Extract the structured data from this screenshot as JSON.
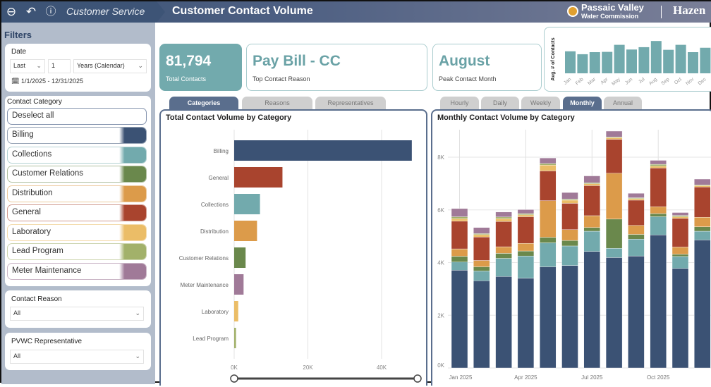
{
  "header": {
    "breadcrumb": "Customer Service",
    "title": "Customer Contact Volume",
    "logo_primary": "Passaic Valley",
    "logo_secondary": "Water Commission",
    "partner_logo": "Hazen",
    "icons": [
      "back-circle-icon",
      "undo-icon",
      "info-icon"
    ]
  },
  "sidebar": {
    "title": "Filters",
    "date": {
      "label": "Date",
      "relative": "Last",
      "count": "1",
      "unit": "Years (Calendar)",
      "range": "1/1/2025 - 12/31/2025"
    },
    "category": {
      "label": "Contact Category",
      "deselect": "Deselect all",
      "items": [
        {
          "label": "Billing",
          "color": "#3b5274"
        },
        {
          "label": "Collections",
          "color": "#72aaad"
        },
        {
          "label": "Customer Relations",
          "color": "#6a884c"
        },
        {
          "label": "Distribution",
          "color": "#dc9b4a"
        },
        {
          "label": "General",
          "color": "#a9442e"
        },
        {
          "label": "Laboratory",
          "color": "#ebbd67"
        },
        {
          "label": "Lead Program",
          "color": "#a2b16a"
        },
        {
          "label": "Meter Maintenance",
          "color": "#a07a98"
        }
      ]
    },
    "reason": {
      "label": "Contact Reason",
      "value": "All"
    },
    "rep": {
      "label": "PVWC Representative",
      "value": "All"
    }
  },
  "kpis": [
    {
      "value": "81,794",
      "label": "Total Contacts"
    },
    {
      "value": "Pay Bill - CC",
      "label": "Top Contact Reason"
    },
    {
      "value": "August",
      "label": "Peak Contact Month"
    }
  ],
  "left_tabs": [
    {
      "label": "Categories",
      "active": true
    },
    {
      "label": "Reasons",
      "active": false
    },
    {
      "label": "Representatives",
      "active": false
    }
  ],
  "right_tabs": [
    {
      "label": "Hourly",
      "active": false
    },
    {
      "label": "Daily",
      "active": false
    },
    {
      "label": "Weekly",
      "active": false
    },
    {
      "label": "Monthly",
      "active": true
    },
    {
      "label": "Annual",
      "active": false
    }
  ],
  "chart_data": [
    {
      "type": "bar",
      "ylabel": "Avg. # of Contacts",
      "categories": [
        "Jan",
        "Feb",
        "Mar",
        "Apr",
        "May",
        "Jun",
        "Jul",
        "Aug",
        "Sep",
        "Oct",
        "Nov",
        "Dec"
      ],
      "values": [
        75,
        65,
        72,
        73,
        97,
        81,
        89,
        110,
        80,
        97,
        72,
        87
      ],
      "color": "#72aaad"
    },
    {
      "type": "bar",
      "orientation": "horizontal",
      "title": "Total Contact Volume by Category",
      "categories": [
        "Billing",
        "General",
        "Collections",
        "Distribution",
        "Customer Relations",
        "Meter Maintenance",
        "Laboratory",
        "Lead Program"
      ],
      "values": [
        48200,
        13100,
        7000,
        6200,
        3100,
        2550,
        1100,
        500
      ],
      "colors": [
        "#3b5274",
        "#a9442e",
        "#72aaad",
        "#dc9b4a",
        "#6a884c",
        "#a07a98",
        "#ebbd67",
        "#a2b16a"
      ],
      "xlim": [
        0,
        50000
      ],
      "xticks": [
        "0K",
        "20K",
        "40K"
      ],
      "xtick_values": [
        0,
        20000,
        40000
      ],
      "grid": true
    },
    {
      "type": "bar",
      "stacked": true,
      "title": "Monthly Contact Volume by Category",
      "x": [
        "Jan 2025",
        "Feb 2025",
        "Mar 2025",
        "Apr 2025",
        "May 2025",
        "Jun 2025",
        "Jul 2025",
        "Aug 2025",
        "Sep 2025",
        "Oct 2025",
        "Nov 2025",
        "Dec 2025"
      ],
      "xticks": [
        "Jan 2025",
        "Apr 2025",
        "Jul 2025",
        "Oct 2025"
      ],
      "yticks": [
        "0K",
        "2K",
        "4K",
        "6K",
        "8K"
      ],
      "ylim": [
        0,
        9000
      ],
      "grid": true,
      "series": [
        {
          "name": "Billing",
          "color": "#3b5274",
          "values": [
            3710,
            3310,
            3470,
            3410,
            3840,
            3890,
            4420,
            4190,
            4250,
            5050,
            3780,
            4860
          ]
        },
        {
          "name": "Collections",
          "color": "#72aaad",
          "values": [
            310,
            370,
            690,
            840,
            910,
            740,
            770,
            350,
            640,
            690,
            450,
            330
          ]
        },
        {
          "name": "Customer Relations",
          "color": "#6a884c",
          "values": [
            220,
            160,
            190,
            190,
            210,
            210,
            140,
            1110,
            180,
            120,
            90,
            170
          ]
        },
        {
          "name": "Distribution",
          "color": "#dc9b4a",
          "values": [
            280,
            240,
            250,
            290,
            1390,
            410,
            450,
            1740,
            340,
            260,
            270,
            360
          ]
        },
        {
          "name": "General",
          "color": "#a9442e",
          "values": [
            1050,
            890,
            960,
            1010,
            1130,
            1000,
            1140,
            1290,
            960,
            1470,
            1090,
            1150
          ]
        },
        {
          "name": "Laboratory",
          "color": "#ebbd67",
          "values": [
            100,
            90,
            110,
            70,
            220,
            120,
            70,
            60,
            60,
            70,
            60,
            50
          ]
        },
        {
          "name": "Lead Program",
          "color": "#a2b16a",
          "values": [
            70,
            40,
            60,
            50,
            60,
            40,
            40,
            30,
            30,
            70,
            50,
            30
          ]
        },
        {
          "name": "Meter Maintenance",
          "color": "#a07a98",
          "values": [
            310,
            230,
            190,
            150,
            210,
            250,
            260,
            220,
            170,
            150,
            110,
            220
          ]
        }
      ]
    }
  ]
}
